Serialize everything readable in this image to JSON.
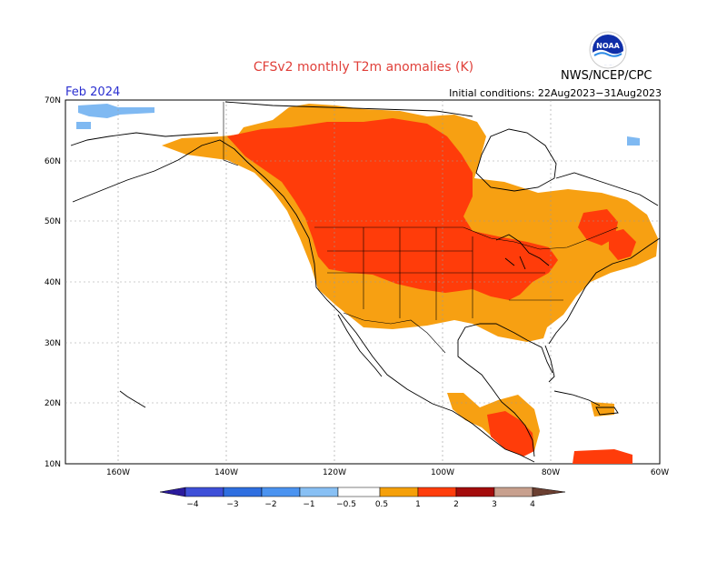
{
  "header": {
    "title": "CFSv2 monthly T2m anomalies (K)",
    "month": "Feb 2024",
    "initial_conditions": "Initial conditions: 22Aug2023−31Aug2023",
    "agency": "NWS/NCEP/CPC",
    "logo_text": "NOAA"
  },
  "axes": {
    "lat_labels": [
      "70N",
      "60N",
      "50N",
      "40N",
      "30N",
      "20N",
      "10N"
    ],
    "lon_labels": [
      "160W",
      "140W",
      "120W",
      "100W",
      "80W",
      "60W"
    ]
  },
  "legend": {
    "labels": [
      "−4",
      "−3",
      "−2",
      "−1",
      "−0.5",
      "0.5",
      "1",
      "2",
      "3",
      "4"
    ],
    "colors": [
      "#2a1a9c",
      "#3e4fd8",
      "#2f6fe0",
      "#4b93f0",
      "#88c0f4",
      "#ffffff",
      "#f5a00a",
      "#ff3d0c",
      "#a30b0b",
      "#c8a08e",
      "#6b3f31"
    ]
  },
  "colors": {
    "light_orange": "#f7a012",
    "red_orange": "#ff3c0a",
    "light_blue": "#7fb9f2",
    "grid": "#9a9a9a",
    "title_red": "#e0403a",
    "month_blue": "#2b2fd0"
  }
}
